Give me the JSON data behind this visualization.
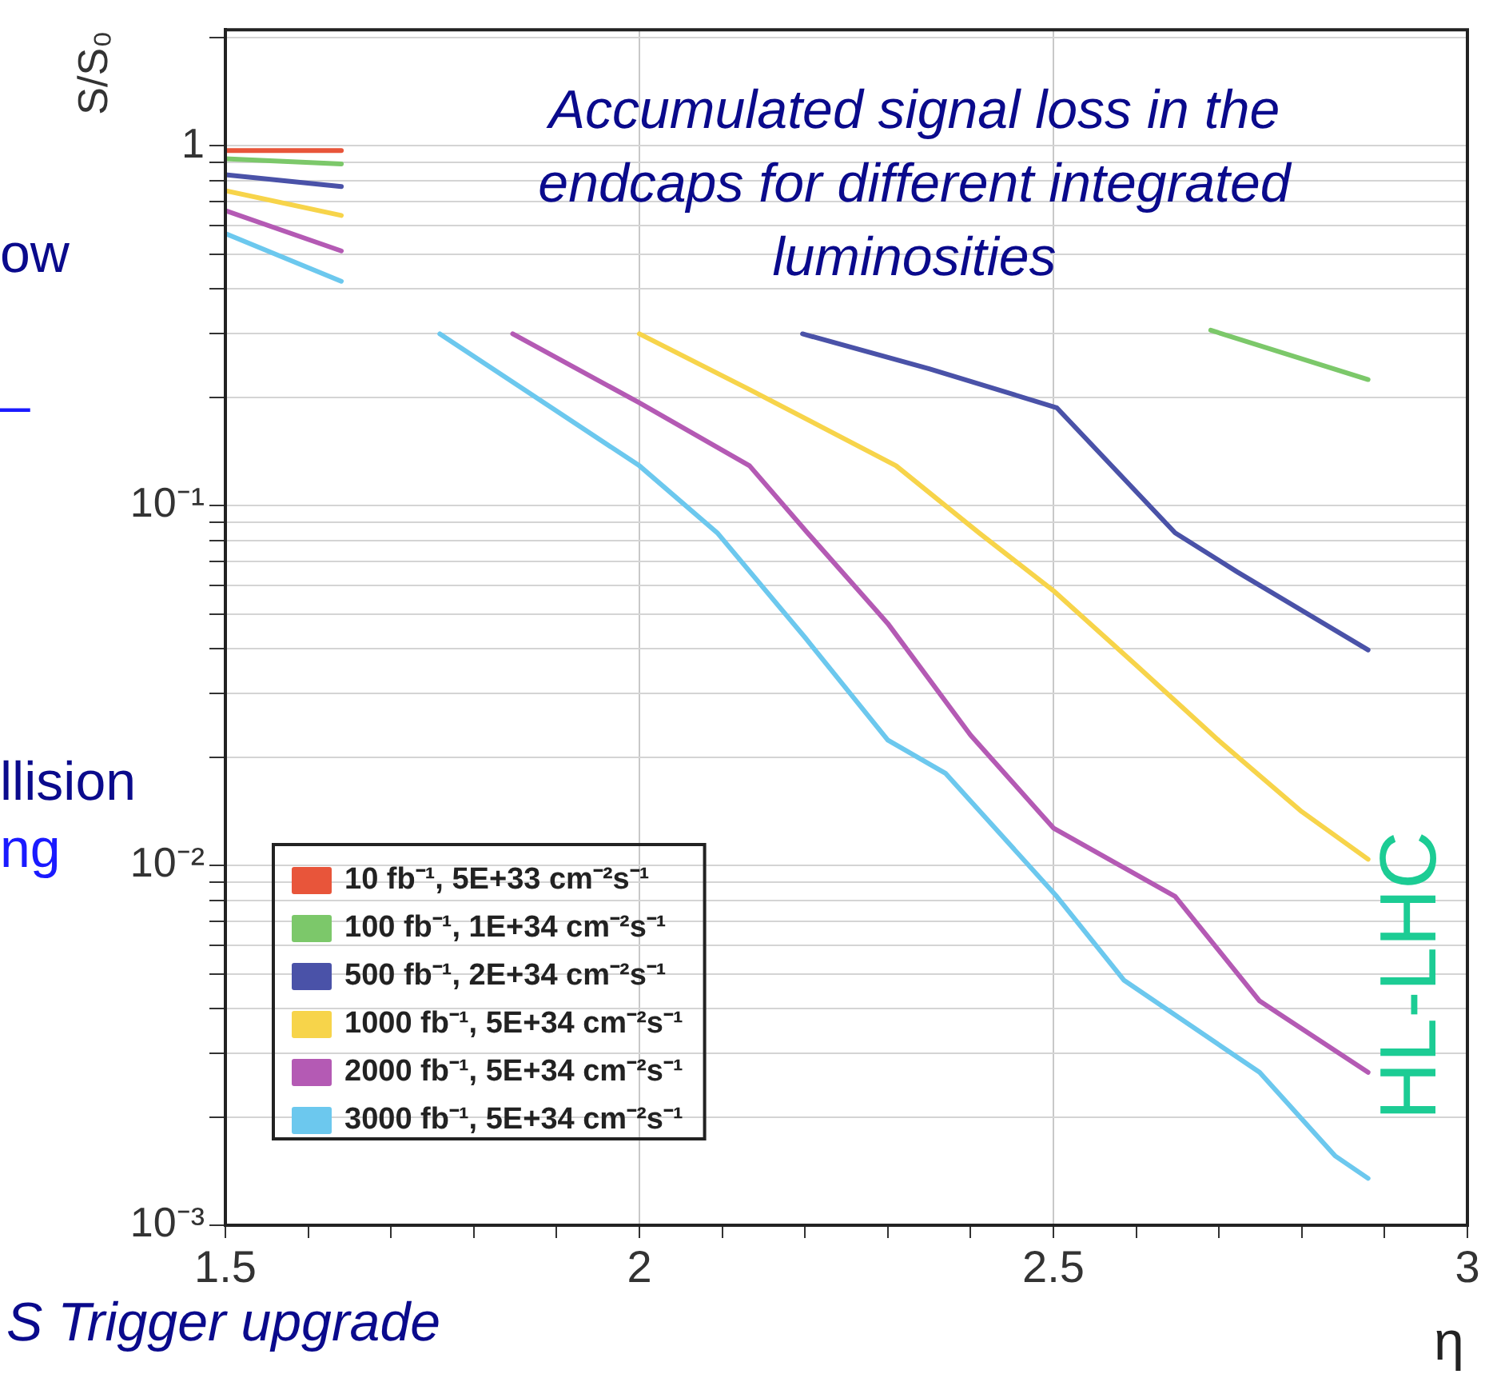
{
  "chart_data": {
    "type": "line",
    "title": "Accumulated signal loss in the endcaps for different integrated luminosities",
    "xlabel": "η",
    "ylabel": "S/S₀",
    "annotations": [
      "ow",
      "–",
      "llision",
      "ng",
      "S Trigger upgrade",
      "HL-LHC"
    ],
    "log": "y",
    "grid": true,
    "legend": "bottom left",
    "marker": "none",
    "line_style": "solid",
    "xlim": [
      1.5,
      3
    ],
    "xticks": [
      1.5,
      {
        "value": 1.6,
        "label": null
      },
      {
        "value": 1.7,
        "label": null
      },
      {
        "value": 1.8,
        "label": null
      },
      {
        "value": 1.9,
        "label": null
      },
      2,
      {
        "value": 2.1,
        "label": null
      },
      {
        "value": 2.2,
        "label": null
      },
      {
        "value": 2.3,
        "label": null
      },
      {
        "value": 2.4,
        "label": null
      },
      2.5,
      {
        "value": 2.6,
        "label": null
      },
      {
        "value": 2.7,
        "label": null
      },
      {
        "value": 2.8,
        "label": null
      },
      {
        "value": 2.9,
        "label": null
      },
      3
    ],
    "ylim": [
      0.001,
      2.1
    ],
    "yticks": [
      {
        "value": 0.001,
        "label": "10⁻³"
      },
      {
        "value": 0.002,
        "label": null
      },
      {
        "value": 0.003,
        "label": null
      },
      {
        "value": 0.004,
        "label": null
      },
      {
        "value": 0.005,
        "label": null
      },
      {
        "value": 0.006,
        "label": null
      },
      {
        "value": 0.007,
        "label": null
      },
      {
        "value": 0.008,
        "label": null
      },
      {
        "value": 0.009,
        "label": null
      },
      {
        "value": 0.01,
        "label": "10⁻²"
      },
      {
        "value": 0.02,
        "label": null
      },
      {
        "value": 0.03,
        "label": null
      },
      {
        "value": 0.04,
        "label": null
      },
      {
        "value": 0.05,
        "label": null
      },
      {
        "value": 0.06,
        "label": null
      },
      {
        "value": 0.07,
        "label": null
      },
      {
        "value": 0.08,
        "label": null
      },
      {
        "value": 0.09,
        "label": null
      },
      {
        "value": 0.1,
        "label": "10⁻¹"
      },
      {
        "value": 0.2,
        "label": null
      },
      {
        "value": 0.3,
        "label": null
      },
      {
        "value": 0.4,
        "label": null
      },
      {
        "value": 0.5,
        "label": null
      },
      {
        "value": 0.6,
        "label": null
      },
      {
        "value": 0.7,
        "label": null
      },
      {
        "value": 0.8,
        "label": null
      },
      {
        "value": 0.9,
        "label": null
      },
      1,
      {
        "value": 2,
        "label": null
      }
    ],
    "series": [
      {
        "name": "10 fb⁻¹, 5E+33 cm⁻²s⁻¹",
        "color": "#e8553a",
        "x": [
          1.5,
          1.64
        ],
        "values": [
          0.97,
          0.97
        ]
      },
      {
        "name": "100 fb⁻¹, 1E+34 cm⁻²s⁻¹",
        "color": "#7cc86a",
        "x": [
          1.5,
          1.64,
          2.2,
          2.69,
          2.88
        ],
        "values": [
          0.92,
          0.89,
          null,
          0.307,
          0.224
        ]
      },
      {
        "name": "500 fb⁻¹, 2E+34 cm⁻²s⁻¹",
        "color": "#4a52a8",
        "x": [
          1.5,
          1.64,
          1.9,
          2.197,
          2.35,
          2.504,
          2.647,
          2.722,
          2.88
        ],
        "values": [
          0.83,
          0.77,
          null,
          0.3,
          0.24,
          0.187,
          0.084,
          0.0654,
          0.0397
        ]
      },
      {
        "name": "1000 fb⁻¹, 5E+34 cm⁻²s⁻¹",
        "color": "#f7d44a",
        "x": [
          1.5,
          1.64,
          1.8,
          2.0,
          2.135,
          2.31,
          2.41,
          2.5,
          2.6,
          2.7,
          2.8,
          2.88
        ],
        "values": [
          0.75,
          0.64,
          null,
          0.3,
          0.209,
          0.129,
          0.084,
          0.058,
          0.036,
          0.0222,
          0.0141,
          0.0104
        ]
      },
      {
        "name": "2000 fb⁻¹, 5E+34 cm⁻²s⁻¹",
        "color": "#b45ab4",
        "x": [
          1.5,
          1.64,
          1.75,
          1.847,
          2.0,
          2.133,
          2.203,
          2.3,
          2.4,
          2.5,
          2.647,
          2.749,
          2.88
        ],
        "values": [
          0.66,
          0.51,
          null,
          0.3,
          0.193,
          0.129,
          0.084,
          0.047,
          0.023,
          0.0127,
          0.0082,
          0.0042,
          0.00266
        ]
      },
      {
        "name": "3000 fb⁻¹, 5E+34 cm⁻²s⁻¹",
        "color": "#6cc8ee",
        "x": [
          1.5,
          1.64,
          1.7,
          1.759,
          2.0,
          2.094,
          2.2,
          2.3,
          2.37,
          2.504,
          2.585,
          2.749,
          2.84,
          2.88
        ],
        "values": [
          0.57,
          0.42,
          null,
          0.3,
          0.129,
          0.084,
          0.043,
          0.0223,
          0.018,
          0.0082,
          0.0048,
          0.00266,
          0.00156,
          0.00135
        ]
      }
    ]
  }
}
